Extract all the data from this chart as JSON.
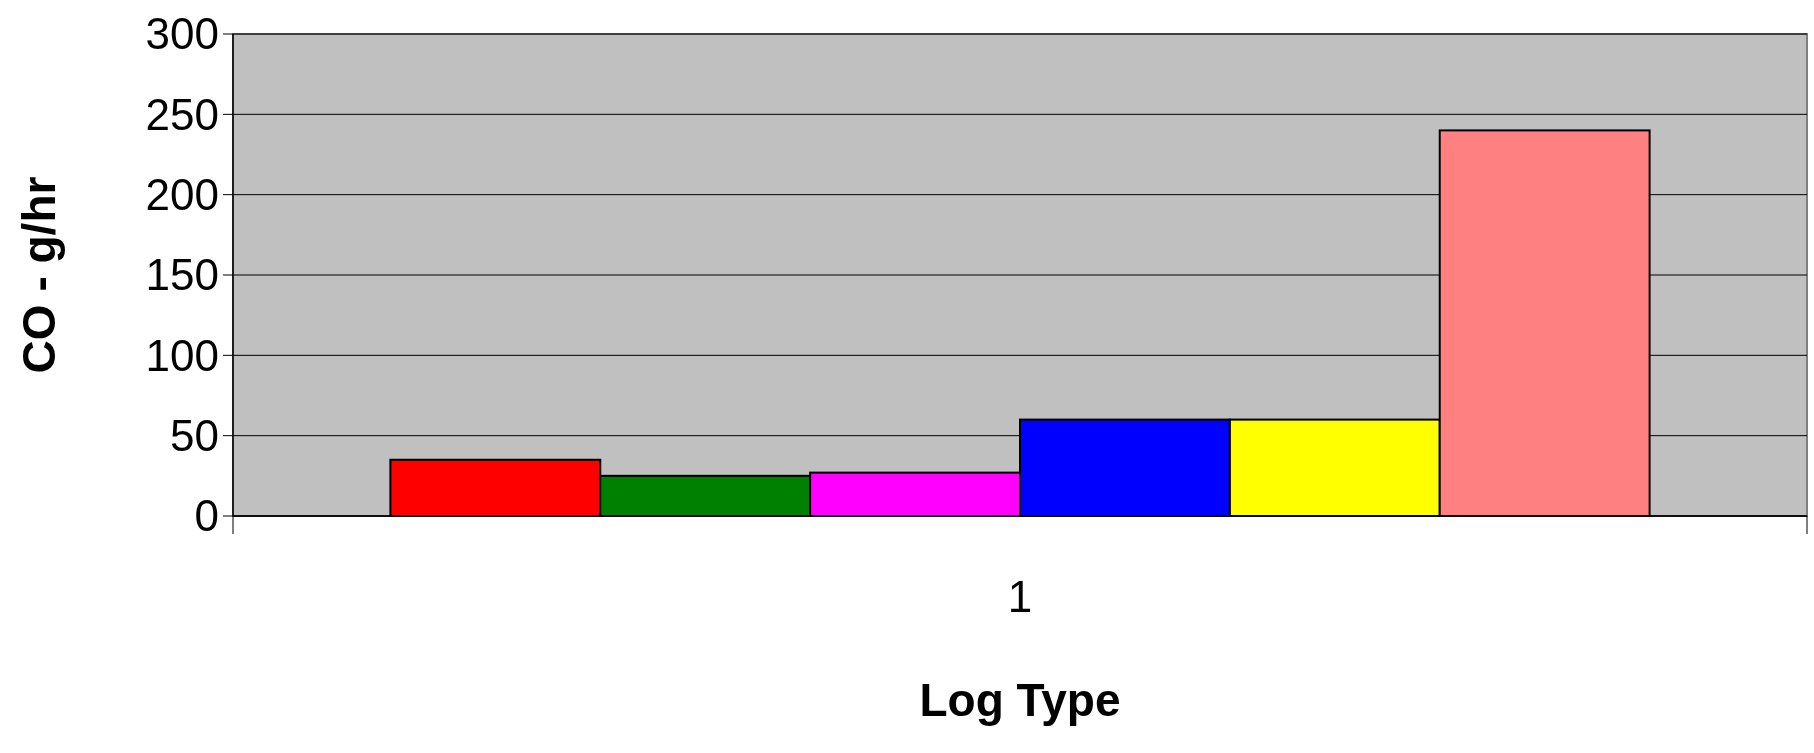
{
  "chart_data": {
    "type": "bar",
    "xlabel": "Log Type",
    "ylabel": "CO - g/hr",
    "categories": [
      "1"
    ],
    "series": [
      {
        "color": "#ff0000",
        "values": [
          35
        ]
      },
      {
        "color": "#008000",
        "values": [
          25
        ]
      },
      {
        "color": "#ff00ff",
        "values": [
          27
        ]
      },
      {
        "color": "#0000ff",
        "values": [
          60
        ]
      },
      {
        "color": "#ffff00",
        "values": [
          60
        ]
      },
      {
        "color": "#ff8080",
        "values": [
          240
        ]
      }
    ],
    "ylim": [
      0,
      300
    ],
    "yticks": [
      0,
      50,
      100,
      150,
      200,
      250,
      300
    ],
    "grid": "y"
  }
}
